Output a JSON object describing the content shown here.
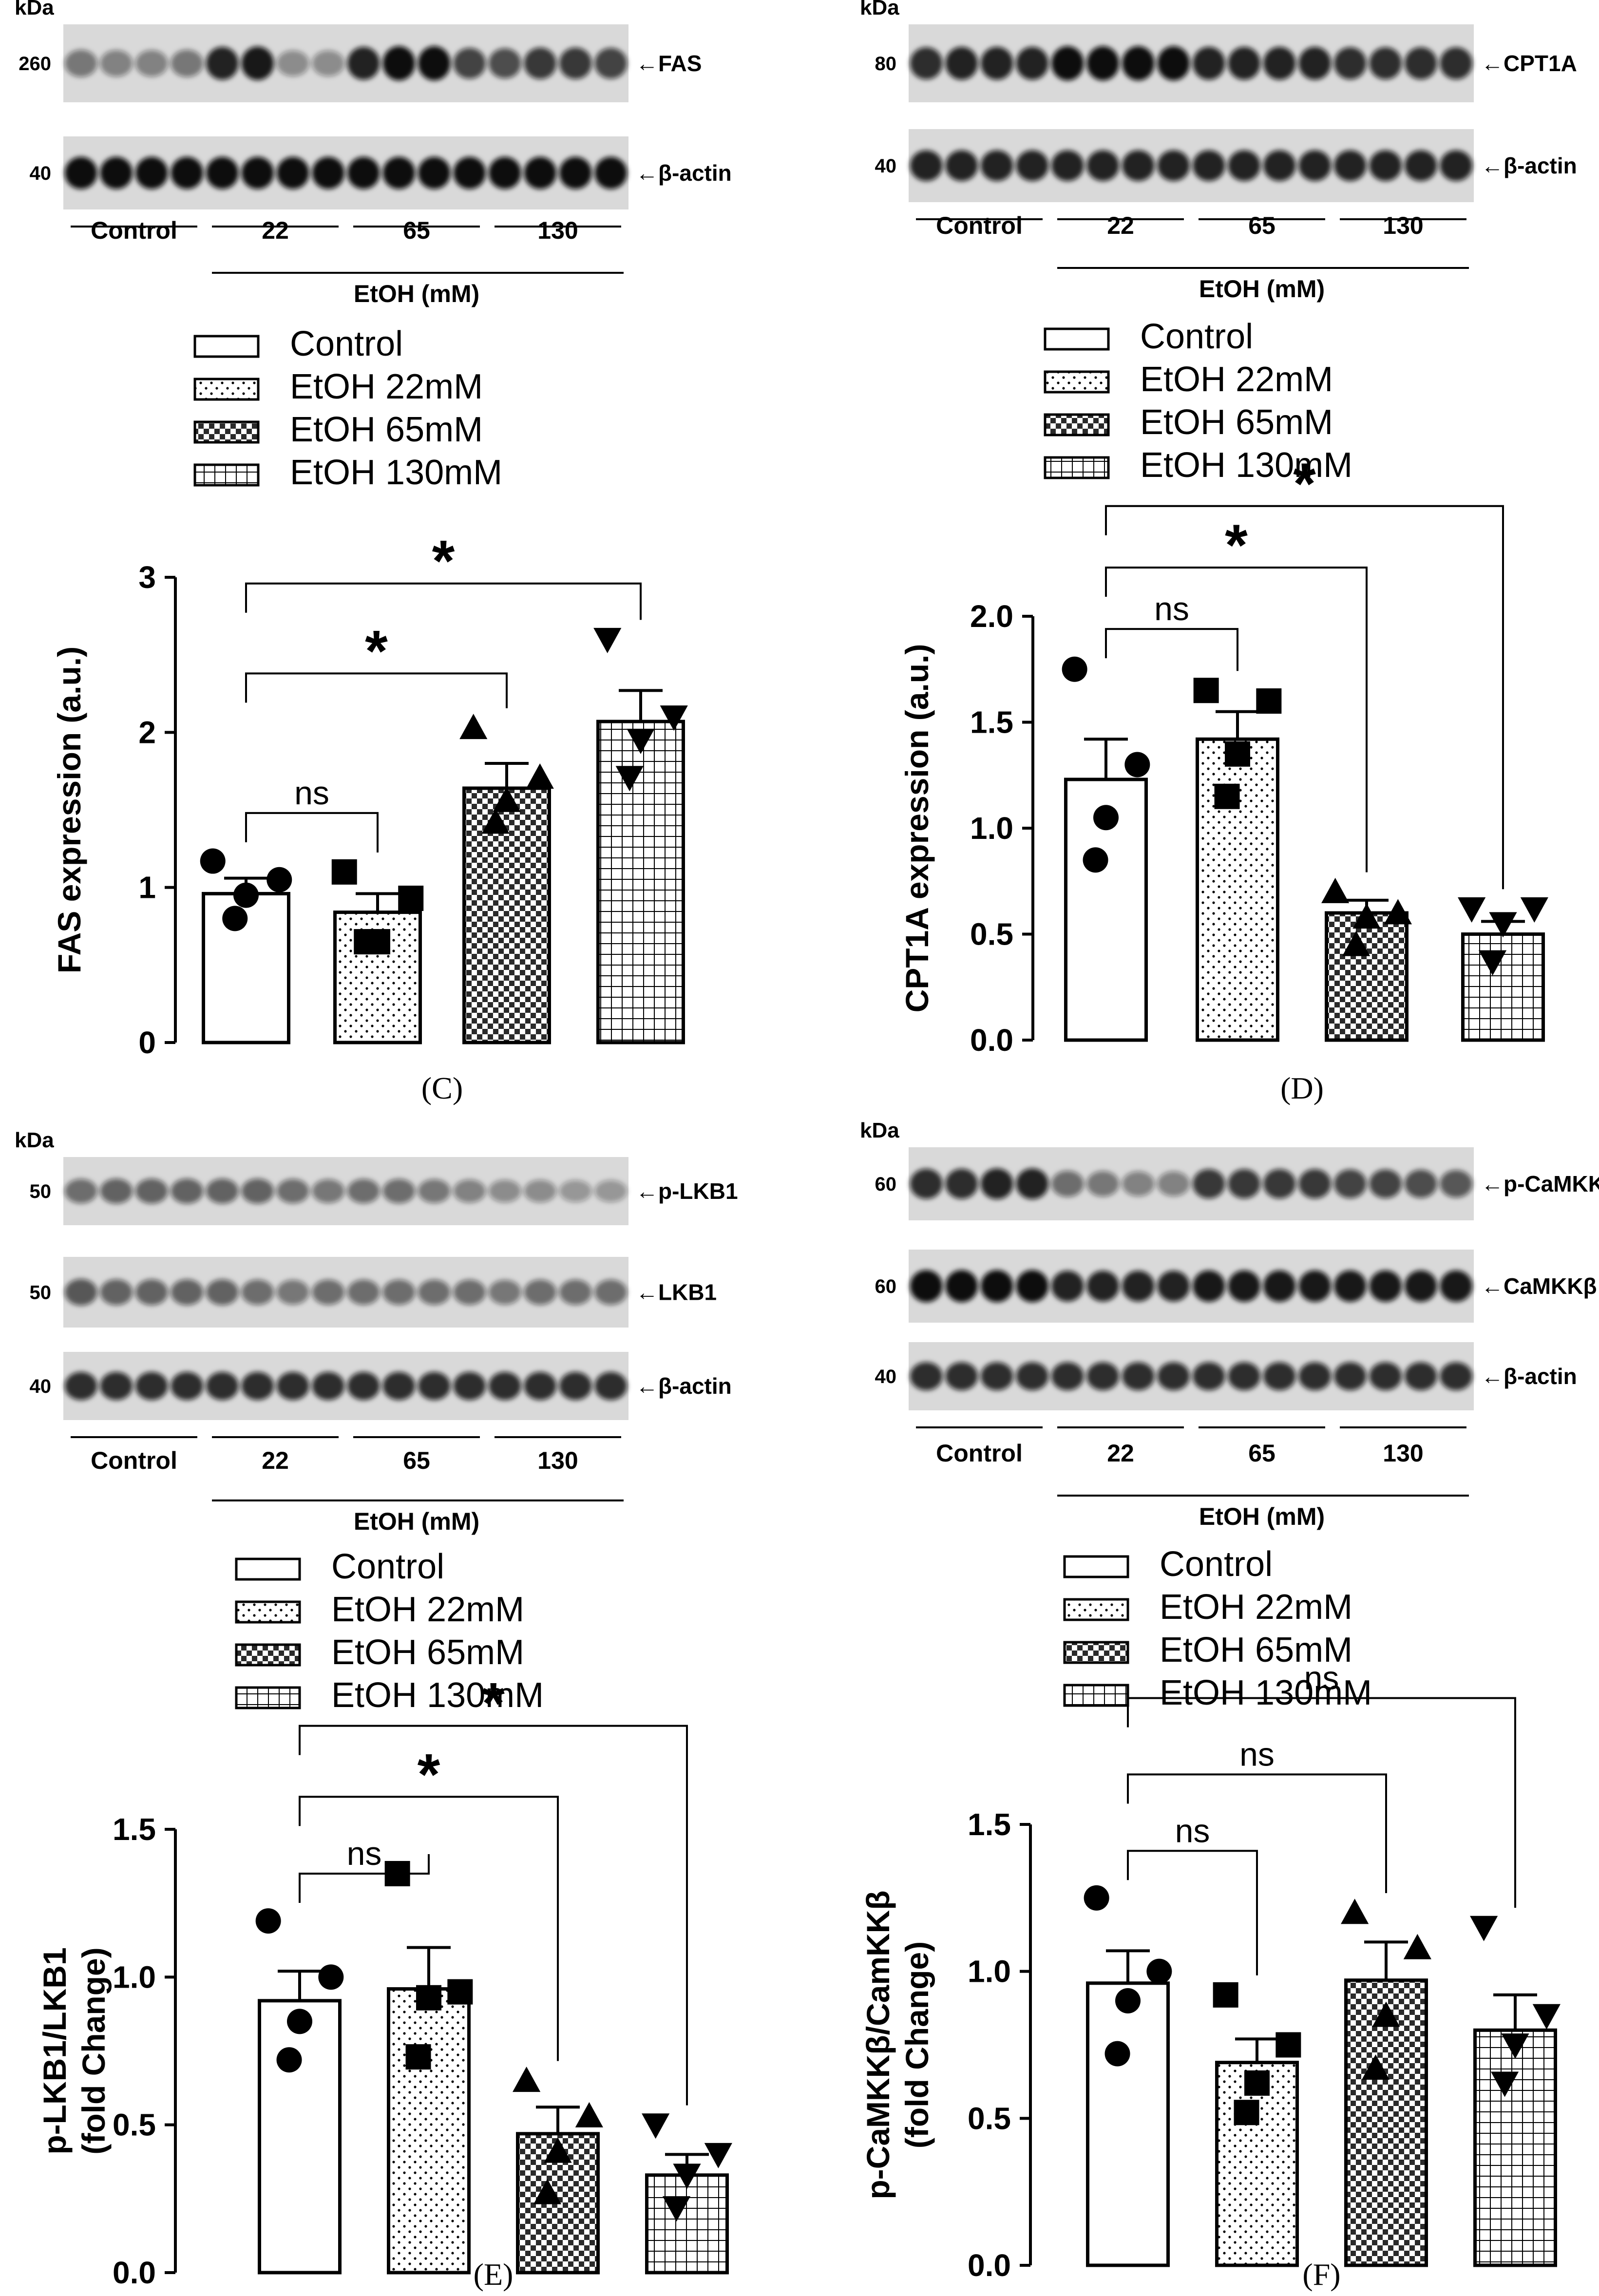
{
  "colors": {
    "ink": "#000000",
    "bandDark": "#111111",
    "blotBg": "#d9d9d9",
    "white": "#ffffff"
  },
  "blots": [
    {
      "id": "FAS",
      "kda_label": "kDa",
      "group_labels": [
        "Control",
        "22",
        "65",
        "130"
      ],
      "treatment_label": "EtOH (mM)",
      "rows": [
        {
          "marker": "260",
          "protein": "FAS",
          "arrow": "←",
          "intensity": [
            0.5,
            0.45,
            0.45,
            0.5,
            0.9,
            0.95,
            0.4,
            0.4,
            0.9,
            1.0,
            1.0,
            0.75,
            0.7,
            0.8,
            0.8,
            0.75
          ]
        },
        {
          "marker": "40",
          "protein": "β-actin",
          "arrow": "←",
          "intensity": [
            1,
            1,
            1,
            1,
            1,
            1,
            1,
            1,
            1,
            1,
            1,
            1,
            1,
            1,
            1,
            1
          ]
        }
      ]
    },
    {
      "id": "CPT1A",
      "kda_label": "kDa",
      "group_labels": [
        "Control",
        "22",
        "65",
        "130"
      ],
      "treatment_label": "EtOH (mM)",
      "rows": [
        {
          "marker": "80",
          "protein": "CPT1A",
          "arrow": "←",
          "intensity": [
            0.85,
            0.9,
            0.9,
            0.9,
            1,
            1,
            1,
            1,
            0.9,
            0.9,
            0.9,
            0.9,
            0.85,
            0.85,
            0.85,
            0.85
          ]
        },
        {
          "marker": "40",
          "protein": "β-actin",
          "arrow": "←",
          "intensity": [
            0.9,
            0.9,
            0.9,
            0.9,
            0.9,
            0.9,
            0.9,
            0.9,
            0.9,
            0.9,
            0.9,
            0.9,
            0.9,
            0.9,
            0.9,
            0.9
          ]
        }
      ]
    },
    {
      "id": "LKB1",
      "kda_label": "kDa",
      "group_labels": [
        "Control",
        "22",
        "65",
        "130"
      ],
      "treatment_label": "EtOH (mM)",
      "rows": [
        {
          "marker": "50",
          "protein": "p-LKB1",
          "arrow": "←",
          "intensity": [
            0.55,
            0.6,
            0.6,
            0.6,
            0.6,
            0.6,
            0.55,
            0.5,
            0.55,
            0.55,
            0.5,
            0.45,
            0.4,
            0.4,
            0.35,
            0.35
          ]
        },
        {
          "marker": "50",
          "protein": "LKB1",
          "arrow": "←",
          "intensity": [
            0.65,
            0.6,
            0.6,
            0.6,
            0.6,
            0.55,
            0.5,
            0.55,
            0.55,
            0.55,
            0.55,
            0.55,
            0.5,
            0.55,
            0.55,
            0.55
          ]
        },
        {
          "marker": "40",
          "protein": "β-actin",
          "arrow": "←",
          "intensity": [
            0.85,
            0.85,
            0.85,
            0.85,
            0.85,
            0.85,
            0.85,
            0.85,
            0.85,
            0.85,
            0.85,
            0.85,
            0.85,
            0.85,
            0.85,
            0.85
          ]
        }
      ]
    },
    {
      "id": "CaMKKb",
      "kda_label": "kDa",
      "group_labels": [
        "Control",
        "22",
        "65",
        "130"
      ],
      "treatment_label": "EtOH (mM)",
      "rows": [
        {
          "marker": "60",
          "protein": "p-CaMKKβ",
          "arrow": "←",
          "intensity": [
            0.85,
            0.85,
            0.9,
            0.9,
            0.55,
            0.5,
            0.45,
            0.45,
            0.8,
            0.8,
            0.8,
            0.8,
            0.75,
            0.75,
            0.7,
            0.65
          ]
        },
        {
          "marker": "60",
          "protein": "CaMKKβ",
          "arrow": "←",
          "intensity": [
            1,
            1,
            1,
            1,
            0.9,
            0.9,
            0.9,
            0.9,
            0.95,
            0.95,
            0.95,
            0.95,
            0.95,
            0.95,
            0.95,
            0.95
          ]
        },
        {
          "marker": "40",
          "protein": "β-actin",
          "arrow": "←",
          "intensity": [
            0.85,
            0.85,
            0.85,
            0.85,
            0.85,
            0.85,
            0.85,
            0.85,
            0.85,
            0.85,
            0.85,
            0.85,
            0.85,
            0.85,
            0.85,
            0.85
          ]
        }
      ]
    }
  ],
  "legend_entries": [
    {
      "label": "Control",
      "pattern": "plain"
    },
    {
      "label": "EtOH 22mM",
      "pattern": "dots"
    },
    {
      "label": "EtOH 65mM",
      "pattern": "checker"
    },
    {
      "label": "EtOH 130mM",
      "pattern": "grid"
    }
  ],
  "chart_data": [
    {
      "panel": "(C)",
      "type": "bar",
      "ylabel": "FAS expression (a.u.)",
      "ylim": [
        0,
        3
      ],
      "yticks": [
        "0",
        "1",
        "2",
        "3"
      ],
      "categories": [
        "Control",
        "EtOH 22mM",
        "EtOH 65mM",
        "EtOH 130mM"
      ],
      "values": [
        0.96,
        0.84,
        1.64,
        2.07
      ],
      "errors": [
        0.1,
        0.12,
        0.16,
        0.2
      ],
      "points": [
        [
          1.17,
          1.05,
          0.95,
          0.8
        ],
        [
          1.1,
          0.93,
          0.65,
          0.65
        ],
        [
          2.03,
          1.71,
          1.56,
          1.42
        ],
        [
          2.6,
          2.1,
          1.95,
          1.71
        ]
      ],
      "markers": [
        "circle",
        "square",
        "triangle-up",
        "triangle-down"
      ],
      "comparisons": [
        {
          "from": 0,
          "to": 1,
          "label": "ns",
          "y": 1.48
        },
        {
          "from": 0,
          "to": 2,
          "label": "*",
          "y": 2.38
        },
        {
          "from": 0,
          "to": 3,
          "label": "*",
          "y": 2.96
        }
      ]
    },
    {
      "panel": "(D)",
      "type": "bar",
      "ylabel": "CPT1A expression (a.u.)",
      "ylim": [
        0,
        2.0
      ],
      "yticks": [
        "0.0",
        "0.5",
        "1.0",
        "1.5",
        "2.0"
      ],
      "categories": [
        "Control",
        "EtOH 22mM",
        "EtOH 65mM",
        "EtOH 130mM"
      ],
      "values": [
        1.23,
        1.42,
        0.6,
        0.5
      ],
      "errors": [
        0.19,
        0.13,
        0.06,
        0.06
      ],
      "points": [
        [
          1.75,
          1.3,
          1.05,
          0.85
        ],
        [
          1.65,
          1.6,
          1.35,
          1.15
        ],
        [
          0.7,
          0.6,
          0.58,
          0.45
        ],
        [
          0.62,
          0.62,
          0.55,
          0.37
        ]
      ],
      "markers": [
        "circle",
        "square",
        "triangle-up",
        "triangle-down"
      ],
      "comparisons": [
        {
          "from": 0,
          "to": 1,
          "label": "ns",
          "y": 1.94
        },
        {
          "from": 0,
          "to": 2,
          "label": "*",
          "y": 2.23
        },
        {
          "from": 0,
          "to": 3,
          "label": "*",
          "y": 2.52
        }
      ]
    },
    {
      "panel": "(E)",
      "type": "bar",
      "ylabel": "p-LKB1/LKB1\n(fold Change)",
      "ylim": [
        0,
        1.5
      ],
      "yticks": [
        "0.0",
        "0.5",
        "1.0",
        "1.5"
      ],
      "categories": [
        "Control",
        "EtOH 22mM",
        "EtOH 65mM",
        "EtOH 130mM"
      ],
      "values": [
        0.92,
        0.96,
        0.47,
        0.33
      ],
      "errors": [
        0.1,
        0.14,
        0.09,
        0.07
      ],
      "points": [
        [
          1.19,
          1.0,
          0.85,
          0.72
        ],
        [
          1.35,
          0.95,
          0.93,
          0.73
        ],
        [
          0.65,
          0.53,
          0.41,
          0.27
        ],
        [
          0.5,
          0.4,
          0.33,
          0.22
        ]
      ],
      "markers": [
        "circle",
        "square",
        "triangle-up",
        "triangle-down"
      ],
      "comparisons": [
        {
          "from": 0,
          "to": 1,
          "label": "ns",
          "y": 1.35
        },
        {
          "from": 0,
          "to": 2,
          "label": "*",
          "y": 1.61
        },
        {
          "from": 0,
          "to": 3,
          "label": "*",
          "y": 1.85
        }
      ]
    },
    {
      "panel": "(F)",
      "type": "bar",
      "ylabel": "p-CaMKKβ/CamKKβ\n(fold Change)",
      "ylim": [
        0,
        1.5
      ],
      "yticks": [
        "0.0",
        "0.5",
        "1.0",
        "1.5"
      ],
      "categories": [
        "Control",
        "EtOH 22mM",
        "EtOH 65mM",
        "EtOH 130mM"
      ],
      "values": [
        0.96,
        0.69,
        0.97,
        0.8
      ],
      "errors": [
        0.11,
        0.08,
        0.13,
        0.12
      ],
      "points": [
        [
          1.25,
          1.0,
          0.9,
          0.72
        ],
        [
          0.92,
          0.75,
          0.62,
          0.52
        ],
        [
          1.2,
          1.08,
          0.85,
          0.67
        ],
        [
          1.15,
          0.85,
          0.75,
          0.62
        ]
      ],
      "markers": [
        "circle",
        "square",
        "triangle-up",
        "triangle-down"
      ],
      "comparisons": [
        {
          "from": 0,
          "to": 1,
          "label": "ns",
          "y": 1.41
        },
        {
          "from": 0,
          "to": 2,
          "label": "ns",
          "y": 1.67
        },
        {
          "from": 0,
          "to": 3,
          "label": "ns",
          "y": 1.93
        }
      ]
    }
  ]
}
